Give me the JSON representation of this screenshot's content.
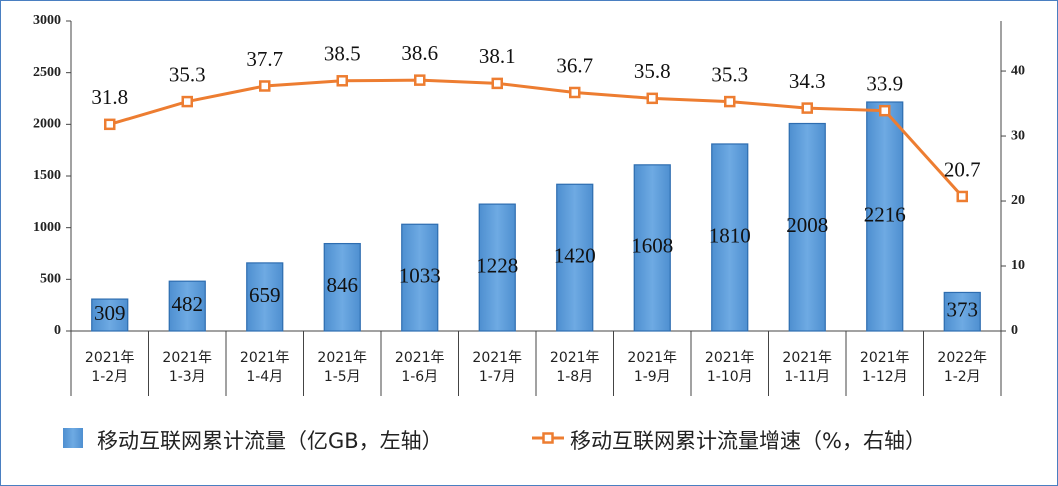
{
  "chart_data": {
    "type": "bar_line",
    "categories": [
      "2021年\n1-2月",
      "2021年\n1-3月",
      "2021年\n1-4月",
      "2021年\n1-5月",
      "2021年\n1-6月",
      "2021年\n1-7月",
      "2021年\n1-8月",
      "2021年\n1-9月",
      "2021年\n1-10月",
      "2021年\n1-11月",
      "2021年\n1-12月",
      "2022年\n1-2月"
    ],
    "series": [
      {
        "name": "移动互联网累计流量（亿GB，左轴）",
        "type": "bar",
        "color": "#5b9bd5",
        "values": [
          309,
          482,
          659,
          846,
          1033,
          1228,
          1420,
          1608,
          1810,
          2008,
          2216,
          373
        ]
      },
      {
        "name": "移动互联网累计流量增速（%，右轴）",
        "type": "line",
        "axis": "y2",
        "color": "#ed7d31",
        "values": [
          31.8,
          35.3,
          37.7,
          38.5,
          38.6,
          38.1,
          36.7,
          35.8,
          35.3,
          34.3,
          33.9,
          20.7
        ]
      }
    ],
    "ylim": [
      0,
      3000
    ],
    "yticks": [
      0,
      500,
      1000,
      1500,
      2000,
      2500,
      3000
    ],
    "y2lim": [
      0,
      47.7
    ],
    "y2ticks": [
      0,
      10,
      20,
      30,
      40
    ]
  }
}
